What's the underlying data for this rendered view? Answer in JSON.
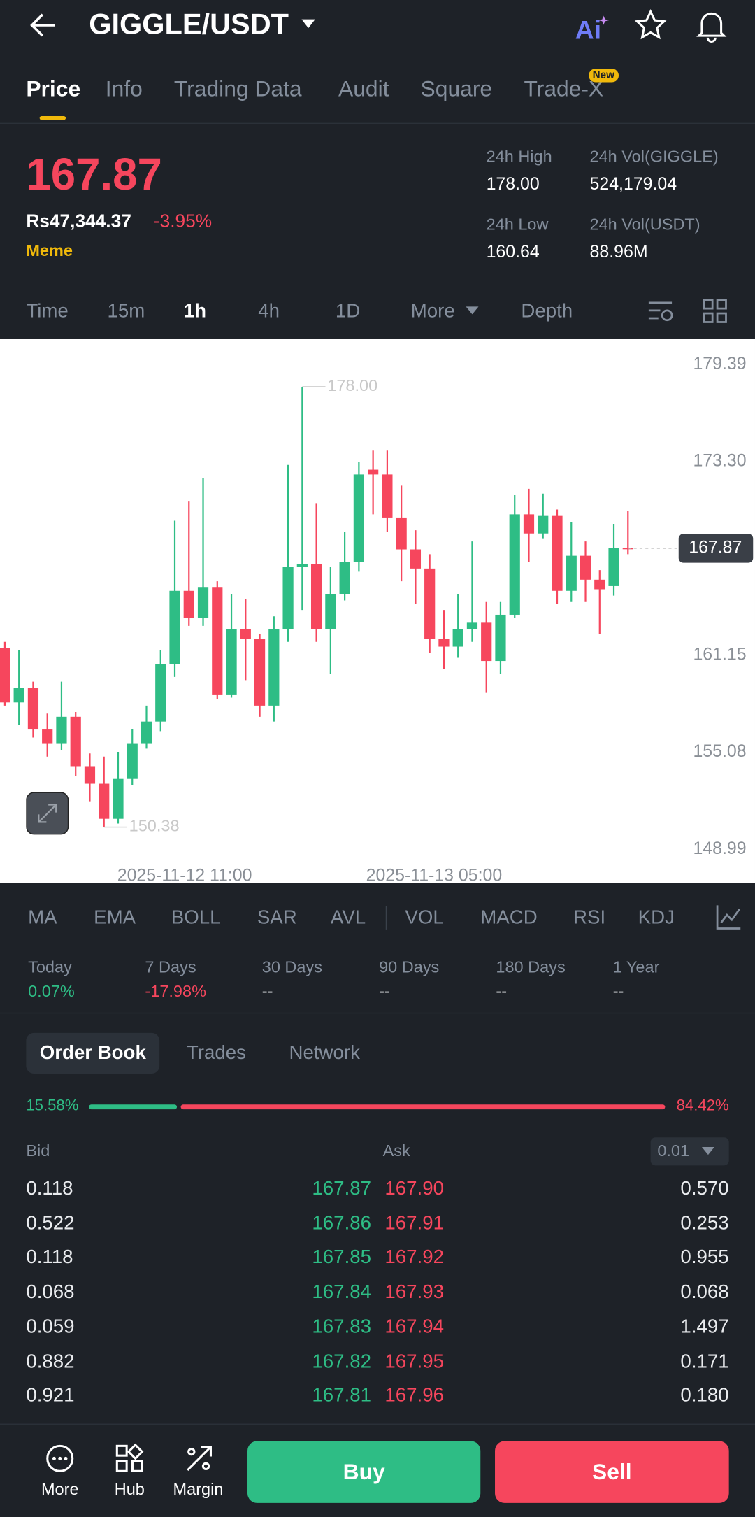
{
  "header": {
    "title": "GIGGLE/USDT"
  },
  "tabs": [
    "Price",
    "Info",
    "Trading Data",
    "Audit",
    "Square",
    "Trade-X"
  ],
  "tab_badge": "New",
  "ticker": {
    "price": "167.87",
    "fiat": "Rs47,344.37",
    "change": "-3.95%",
    "tag": "Meme",
    "stats": [
      {
        "label": "24h High",
        "value": "178.00"
      },
      {
        "label": "24h Vol(GIGGLE)",
        "value": "524,179.04"
      },
      {
        "label": "24h Low",
        "value": "160.64"
      },
      {
        "label": "24h Vol(USDT)",
        "value": "88.96M"
      }
    ]
  },
  "intervals": [
    "Time",
    "15m",
    "1h",
    "4h",
    "1D",
    "More",
    "Depth"
  ],
  "chart": {
    "type": "candlestick",
    "up_color": "#2ebd85",
    "down_color": "#f6465d",
    "ylim": [
      146.87,
      181.03
    ],
    "yticks": [
      179.39,
      {
        "value": 173.3,
        "label": "173.30"
      },
      161.15,
      155.08,
      148.99
    ],
    "last_price": 167.87,
    "last_price_label": "167.87",
    "annotations": {
      "high": "178.00",
      "low": "150.38"
    },
    "x_labels": [
      "2025-11-12 11:00",
      "2025-11-13 05:00"
    ],
    "candles": [
      {
        "open": 161.6,
        "high": 162.0,
        "low": 158.0,
        "close": 158.2
      },
      {
        "open": 158.2,
        "high": 161.5,
        "low": 156.8,
        "close": 159.1
      },
      {
        "open": 159.1,
        "high": 159.5,
        "low": 156.0,
        "close": 156.5
      },
      {
        "open": 156.5,
        "high": 157.5,
        "low": 154.8,
        "close": 155.6
      },
      {
        "open": 155.6,
        "high": 159.5,
        "low": 155.2,
        "close": 157.3
      },
      {
        "open": 157.3,
        "high": 157.6,
        "low": 153.6,
        "close": 154.2
      },
      {
        "open": 154.2,
        "high": 155.0,
        "low": 152.0,
        "close": 153.1
      },
      {
        "open": 153.1,
        "high": 154.8,
        "low": 150.38,
        "close": 150.9
      },
      {
        "open": 150.9,
        "high": 155.1,
        "low": 150.6,
        "close": 153.4
      },
      {
        "open": 153.4,
        "high": 156.5,
        "low": 153.0,
        "close": 155.6
      },
      {
        "open": 155.6,
        "high": 158.0,
        "low": 155.3,
        "close": 157.0
      },
      {
        "open": 157.0,
        "high": 161.5,
        "low": 156.4,
        "close": 160.6
      },
      {
        "open": 160.6,
        "high": 169.6,
        "low": 159.8,
        "close": 165.2
      },
      {
        "open": 165.2,
        "high": 170.8,
        "low": 163.0,
        "close": 163.5
      },
      {
        "open": 163.5,
        "high": 172.3,
        "low": 163.0,
        "close": 165.4
      },
      {
        "open": 165.4,
        "high": 165.8,
        "low": 158.4,
        "close": 158.7
      },
      {
        "open": 158.7,
        "high": 165.0,
        "low": 158.5,
        "close": 162.8
      },
      {
        "open": 162.8,
        "high": 164.7,
        "low": 159.6,
        "close": 162.2
      },
      {
        "open": 162.2,
        "high": 162.5,
        "low": 157.3,
        "close": 158.0
      },
      {
        "open": 158.0,
        "high": 163.6,
        "low": 157.0,
        "close": 162.8
      },
      {
        "open": 162.8,
        "high": 173.1,
        "low": 162.0,
        "close": 166.7
      },
      {
        "open": 166.7,
        "high": 178.0,
        "low": 164.0,
        "close": 166.9
      },
      {
        "open": 166.9,
        "high": 170.7,
        "low": 162.0,
        "close": 162.8
      },
      {
        "open": 162.8,
        "high": 166.7,
        "low": 160.0,
        "close": 165.0
      },
      {
        "open": 165.0,
        "high": 168.9,
        "low": 164.6,
        "close": 167.0
      },
      {
        "open": 167.0,
        "high": 173.3,
        "low": 166.4,
        "close": 172.5
      },
      {
        "open": 172.8,
        "high": 174.0,
        "low": 170.0,
        "close": 172.5
      },
      {
        "open": 172.5,
        "high": 174.0,
        "low": 168.9,
        "close": 169.8
      },
      {
        "open": 169.8,
        "high": 171.8,
        "low": 165.8,
        "close": 167.8
      },
      {
        "open": 167.8,
        "high": 169.0,
        "low": 164.4,
        "close": 166.6
      },
      {
        "open": 166.6,
        "high": 167.5,
        "low": 161.3,
        "close": 162.2
      },
      {
        "open": 162.2,
        "high": 164.0,
        "low": 160.3,
        "close": 161.7
      },
      {
        "open": 161.7,
        "high": 165.0,
        "low": 161.0,
        "close": 162.8
      },
      {
        "open": 162.8,
        "high": 168.3,
        "low": 162.0,
        "close": 163.2
      },
      {
        "open": 163.2,
        "high": 164.5,
        "low": 158.8,
        "close": 160.8
      },
      {
        "open": 160.8,
        "high": 164.5,
        "low": 160.0,
        "close": 163.7
      },
      {
        "open": 163.7,
        "high": 171.2,
        "low": 163.5,
        "close": 170.0
      },
      {
        "open": 170.0,
        "high": 171.6,
        "low": 167.0,
        "close": 168.8
      },
      {
        "open": 168.8,
        "high": 171.3,
        "low": 168.5,
        "close": 169.9
      },
      {
        "open": 169.9,
        "high": 170.3,
        "low": 164.4,
        "close": 165.2
      },
      {
        "open": 165.2,
        "high": 169.5,
        "low": 164.5,
        "close": 167.4
      },
      {
        "open": 167.4,
        "high": 168.3,
        "low": 164.5,
        "close": 165.9
      },
      {
        "open": 165.9,
        "high": 166.5,
        "low": 162.5,
        "close": 165.3
      },
      {
        "open": 165.5,
        "high": 169.4,
        "low": 164.9,
        "close": 167.9
      },
      {
        "open": 167.9,
        "high": 170.2,
        "low": 167.5,
        "close": 167.87
      }
    ]
  },
  "indicators": [
    "MA",
    "EMA",
    "BOLL",
    "SAR",
    "AVL",
    "VOL",
    "MACD",
    "RSI",
    "KDJ"
  ],
  "performance": [
    {
      "label": "Today",
      "value": "0.07%",
      "color": "#2ebd85"
    },
    {
      "label": "7 Days",
      "value": "-17.98%",
      "color": "#f6465d"
    },
    {
      "label": "30 Days",
      "value": "--",
      "color": "#eaecef"
    },
    {
      "label": "90 Days",
      "value": "--",
      "color": "#eaecef"
    },
    {
      "label": "180 Days",
      "value": "--",
      "color": "#eaecef"
    },
    {
      "label": "1 Year",
      "value": "--",
      "color": "#eaecef"
    }
  ],
  "orderbook": {
    "tabs": [
      "Order Book",
      "Trades",
      "Network"
    ],
    "depth_bar": {
      "values": [
        15.58,
        84.42
      ],
      "value_labels": [
        "15.58%",
        "84.42%"
      ]
    },
    "headers": [
      "Bid",
      "Ask"
    ],
    "step": "0.01",
    "rows": [
      [
        "0.118",
        "167.87",
        "167.90",
        "0.570"
      ],
      [
        "0.522",
        "167.86",
        "167.91",
        "0.253"
      ],
      [
        "0.118",
        "167.85",
        "167.92",
        "0.955"
      ],
      [
        "0.068",
        "167.84",
        "167.93",
        "0.068"
      ],
      [
        "0.059",
        "167.83",
        "167.94",
        "1.497"
      ],
      [
        "0.882",
        "167.82",
        "167.95",
        "0.171"
      ],
      [
        "0.921",
        "167.81",
        "167.96",
        "0.180"
      ]
    ]
  },
  "footer": {
    "nav": [
      "More",
      "Hub",
      "Margin"
    ],
    "buy": "Buy",
    "sell": "Sell"
  }
}
